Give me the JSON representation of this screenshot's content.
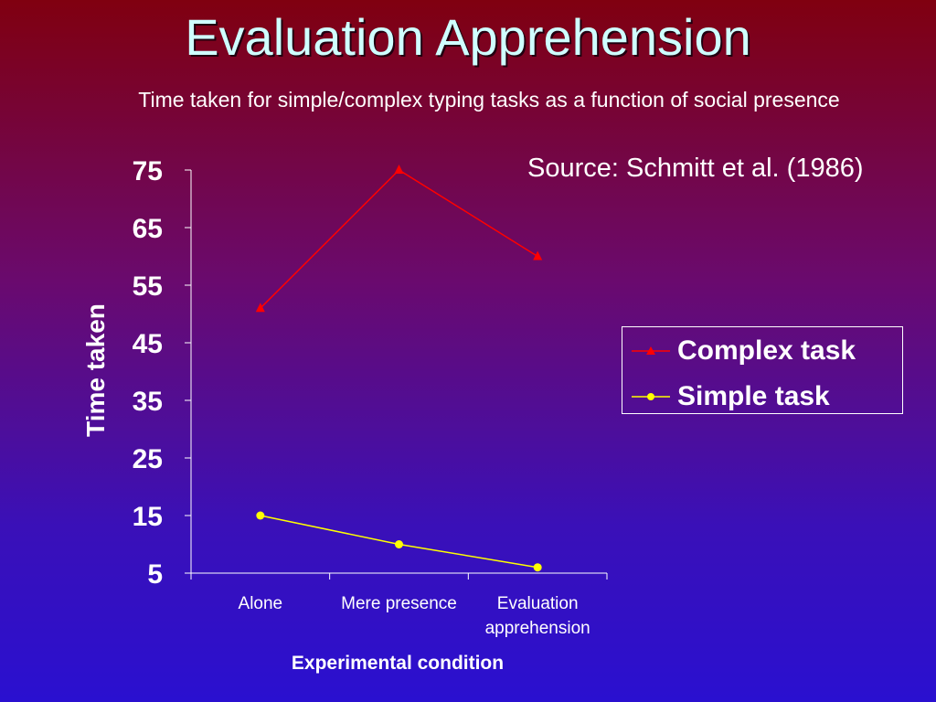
{
  "slide": {
    "title": "Evaluation Apprehension",
    "subtitle": "Time taken for simple/complex typing tasks as a function of social presence",
    "source": "Source: Schmitt et al. (1986)"
  },
  "colors": {
    "complex": "#ff0000",
    "simple": "#ffff00",
    "axis": "#ffffff"
  },
  "chart_data": {
    "type": "line",
    "title": "",
    "xlabel": "Experimental condition",
    "ylabel": "Time taken",
    "categories": [
      "Alone",
      "Mere presence",
      "Evaluation apprehension"
    ],
    "category_lines": [
      [
        "Alone"
      ],
      [
        "Mere presence"
      ],
      [
        "Evaluation",
        "apprehension"
      ]
    ],
    "ylim": [
      5,
      75
    ],
    "yticks": [
      5,
      15,
      25,
      35,
      45,
      55,
      65,
      75
    ],
    "grid": false,
    "legend_position": "right",
    "series": [
      {
        "name": "Complex task",
        "marker": "triangle",
        "values": [
          51,
          75,
          60
        ]
      },
      {
        "name": "Simple task",
        "marker": "circle",
        "values": [
          15,
          10,
          6
        ]
      }
    ]
  }
}
